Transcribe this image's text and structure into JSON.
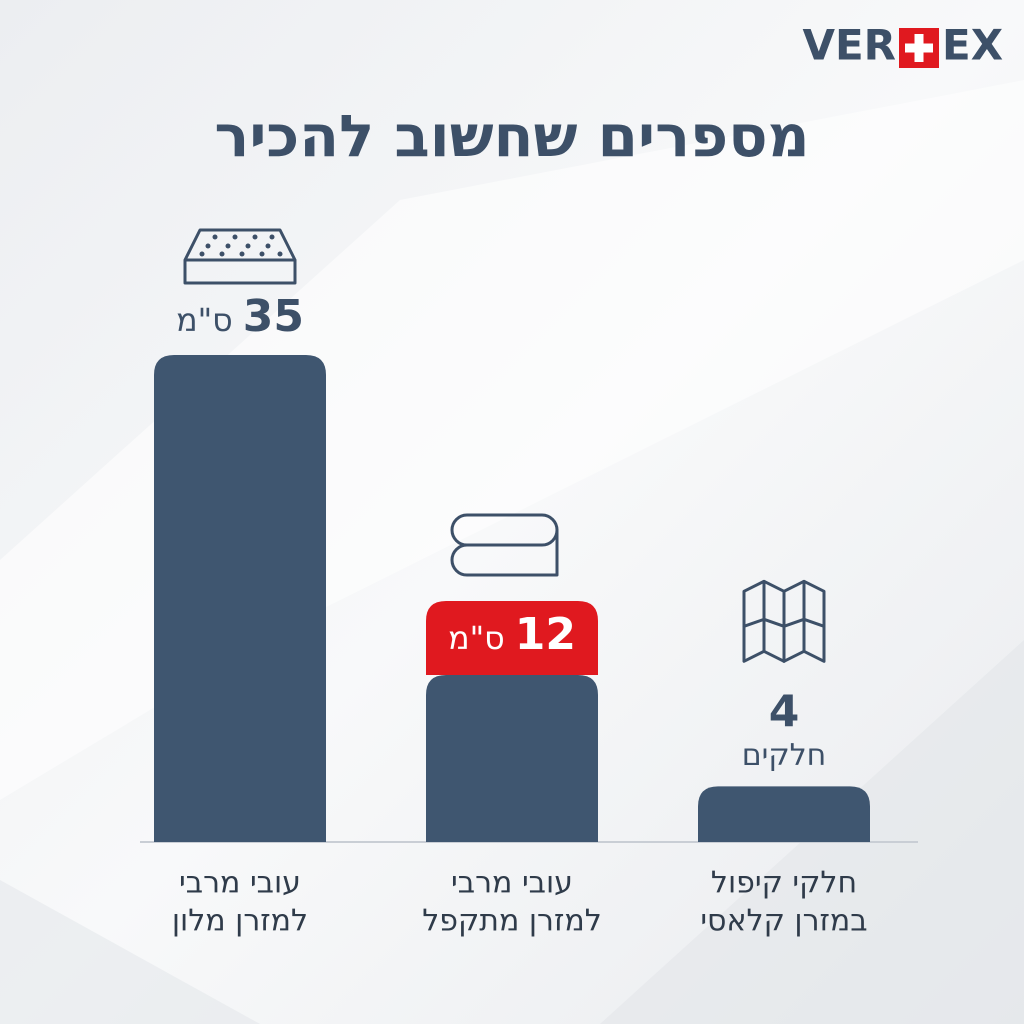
{
  "logo": [
    "VER",
    "EX"
  ],
  "chart_data": {
    "type": "bar",
    "title": "מספרים שחשוב להכיר",
    "categories": [
      [
        "עובי מרבי",
        "למזרן מלון"
      ],
      [
        "עובי מרבי",
        "למזרן מתקפל"
      ],
      [
        "חלקי קיפול",
        "במזרן קלאסי"
      ]
    ],
    "values": [
      35,
      12,
      4
    ],
    "units": [
      "ס\"מ",
      "ס\"מ",
      "חלקים"
    ],
    "color": "#3f5670",
    "highlight_color": "#e0191f",
    "logo_color": "#3d5068"
  }
}
